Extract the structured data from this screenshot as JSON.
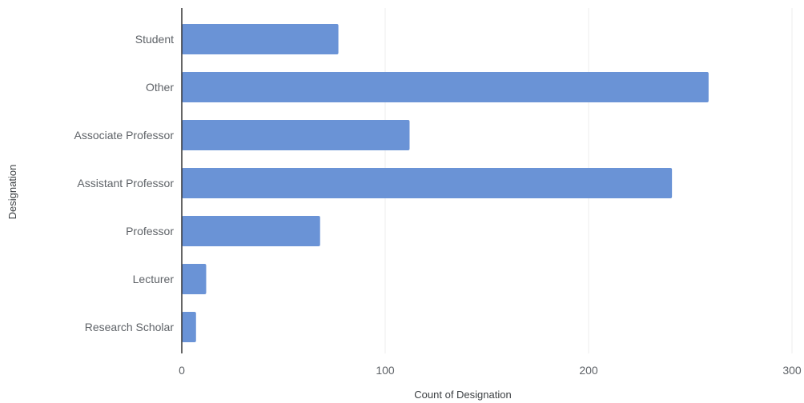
{
  "chart_data": {
    "type": "bar",
    "orientation": "horizontal",
    "categories": [
      "Student",
      "Other",
      "Associate Professor",
      "Assistant Professor",
      "Professor",
      "Lecturer",
      "Research Scholar"
    ],
    "values": [
      77,
      259,
      112,
      241,
      68,
      12,
      7
    ],
    "xlabel": "Count of Designation",
    "ylabel": "Designation",
    "xlim": [
      0,
      300
    ],
    "xticks": [
      0,
      100,
      200,
      300
    ],
    "grid": "vertical",
    "bar_color": "#6a93d6",
    "grid_color": "#ececec",
    "axis_color": "#333333"
  }
}
